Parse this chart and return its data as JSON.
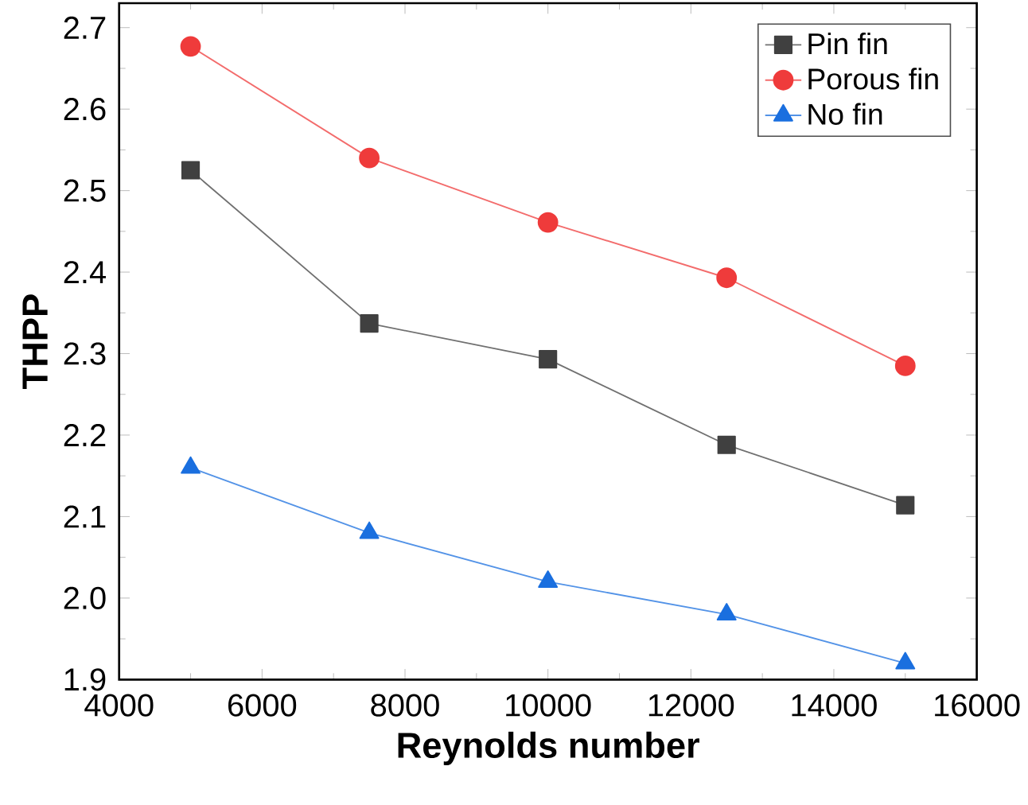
{
  "chart_data": {
    "type": "line",
    "xlabel": "Reynolds number",
    "ylabel": "THPP",
    "x": [
      5000,
      7500,
      10000,
      12500,
      15000
    ],
    "series": [
      {
        "name": "Pin fin",
        "color": "#404040",
        "marker": "square",
        "values": [
          2.525,
          2.337,
          2.293,
          2.188,
          2.114
        ]
      },
      {
        "name": "Porous fin",
        "color": "#ef3b3b",
        "marker": "circle",
        "values": [
          2.677,
          2.54,
          2.461,
          2.393,
          2.285
        ]
      },
      {
        "name": "No fin",
        "color": "#1a6fdf",
        "marker": "triangle",
        "values": [
          2.16,
          2.08,
          2.02,
          1.98,
          1.92
        ]
      }
    ],
    "xlim": [
      4000,
      16000
    ],
    "xticks": [
      4000,
      6000,
      8000,
      10000,
      12000,
      14000,
      16000
    ],
    "ylim": [
      1.9,
      2.73
    ],
    "yticks": [
      1.9,
      {
        "value": 2,
        "label": "2.0"
      },
      2.1,
      2.2,
      2.3,
      2.4,
      2.5,
      2.6,
      2.7
    ],
    "legend": "top right",
    "grid": false,
    "line_style": "solid"
  }
}
